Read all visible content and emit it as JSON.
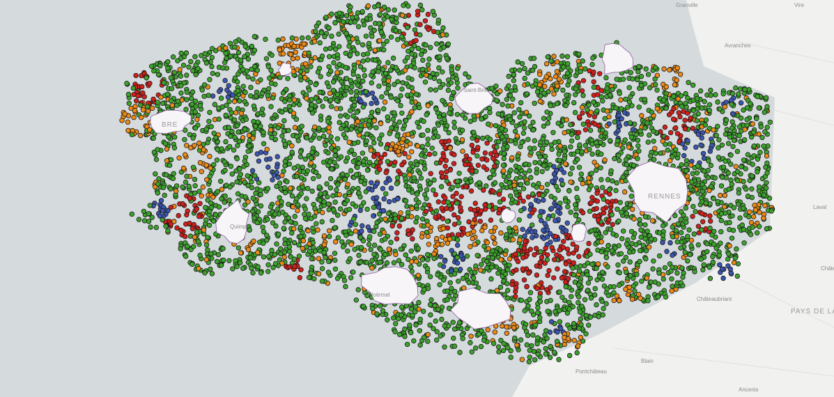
{
  "map": {
    "labels": {
      "granville": "Granville",
      "vire": "Vire",
      "avranches": "Avranches",
      "laval": "Laval",
      "chateau_gontier": "Châte Gonti",
      "chateaubriant": "Châteaubriant",
      "region": "PAYS DE LA LOIRE",
      "blain": "Blain",
      "pontchateau": "Pontchâteau",
      "ancenis": "Ancenis",
      "rennes": "RENNES",
      "ploermel": "Ploërmel",
      "quimper": "Quimp",
      "saint_brieuc": "Saint-Brie",
      "brest": "BRE"
    }
  }
}
